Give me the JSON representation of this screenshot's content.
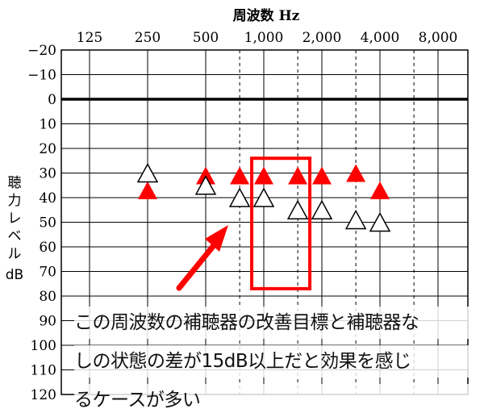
{
  "chart_data": {
    "type": "scatter",
    "title": "周波数 Hz",
    "xlabel": "周波数 Hz",
    "ylabel": "聴力レベル dB",
    "x_categories": [
      "125",
      "250",
      "500",
      "1,000",
      "2,000",
      "4,000",
      "8,000"
    ],
    "x_half_octaves": [
      "750",
      "1,500",
      "3,000",
      "6,000"
    ],
    "y_ticks": [
      "−20",
      "−10",
      "0",
      "10",
      "20",
      "30",
      "40",
      "50",
      "60",
      "70",
      "80",
      "90",
      "100",
      "110",
      "120"
    ],
    "ylim": [
      -20,
      120
    ],
    "y_inverted": true,
    "series": [
      {
        "marker": "filled-triangle",
        "color": "#ff0000",
        "points": [
          {
            "x": 250,
            "y": 37
          },
          {
            "x": 500,
            "y": 31
          },
          {
            "x": 750,
            "y": 31
          },
          {
            "x": 1000,
            "y": 31
          },
          {
            "x": 1500,
            "y": 31
          },
          {
            "x": 2000,
            "y": 31
          },
          {
            "x": 3000,
            "y": 30
          },
          {
            "x": 4000,
            "y": 37
          }
        ]
      },
      {
        "marker": "open-triangle",
        "color": "#000000",
        "points": [
          {
            "x": 250,
            "y": 30
          },
          {
            "x": 500,
            "y": 35
          },
          {
            "x": 750,
            "y": 40
          },
          {
            "x": 1000,
            "y": 40
          },
          {
            "x": 1500,
            "y": 45
          },
          {
            "x": 2000,
            "y": 45
          },
          {
            "x": 3000,
            "y": 49
          },
          {
            "x": 4000,
            "y": 50
          }
        ]
      }
    ],
    "grid": true,
    "zero_line_bold": true,
    "highlight_box": {
      "x_from": 1000,
      "x_to": 1500,
      "y_from": 24,
      "y_to": 77,
      "color": "#ff0000"
    },
    "arrow_color": "#ff0000"
  },
  "annotation": {
    "line1": "この周波数の補聴器の改善目標と補聴器な",
    "line2": "しの状態の差が15dB以上だと効果を感じ",
    "line3": "るケースが多い"
  }
}
